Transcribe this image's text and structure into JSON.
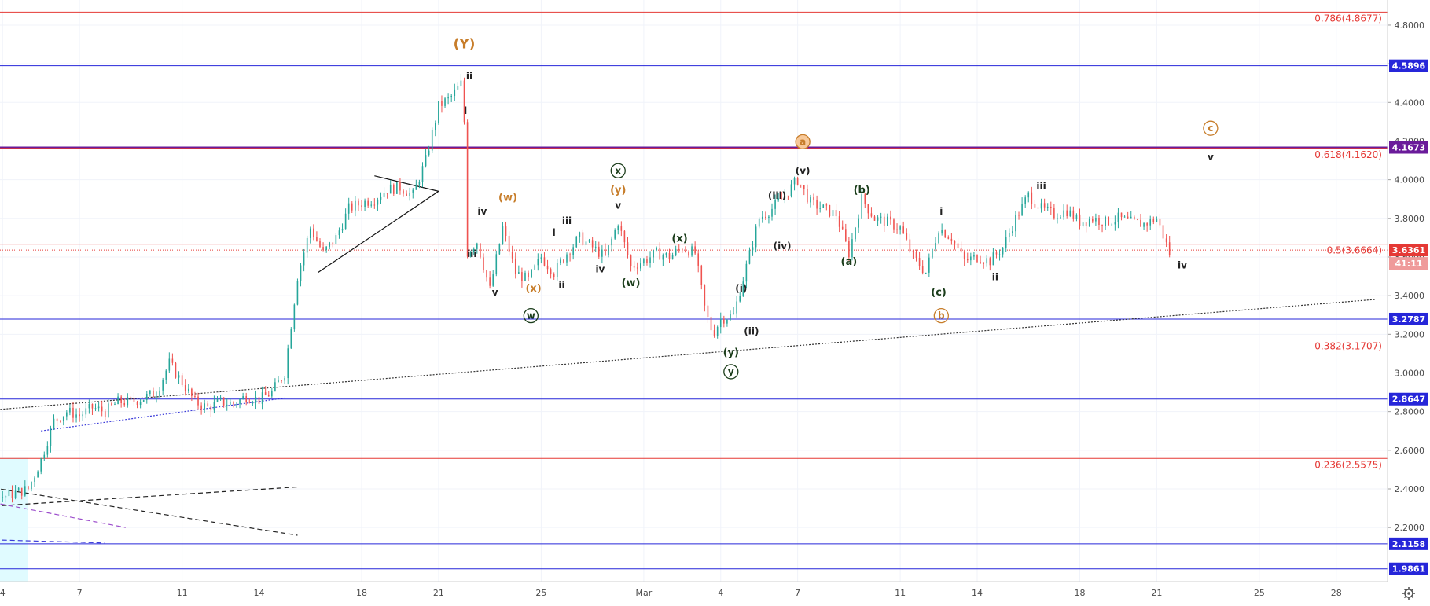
{
  "chart_data": {
    "type": "candlestick",
    "price_range": [
      1.92,
      4.93
    ],
    "price_axis_ticks": [
      "4.8000",
      "4.6000",
      "4.4000",
      "4.2000",
      "4.0000",
      "3.8000",
      "3.6000",
      "3.4000",
      "3.2000",
      "3.0000",
      "2.8000",
      "2.6000",
      "2.4000",
      "2.2000"
    ],
    "time_axis_ticks": [
      {
        "day": 4,
        "label": "4"
      },
      {
        "day": 7,
        "label": "7"
      },
      {
        "day": 11,
        "label": "11"
      },
      {
        "day": 14,
        "label": "14"
      },
      {
        "day": 18,
        "label": "18"
      },
      {
        "day": 21,
        "label": "21"
      },
      {
        "day": 25,
        "label": "25"
      },
      {
        "day": 29,
        "label": "Mar"
      },
      {
        "day": 32,
        "label": "4"
      },
      {
        "day": 35,
        "label": "7"
      },
      {
        "day": 39,
        "label": "11"
      },
      {
        "day": 42,
        "label": "14"
      },
      {
        "day": 46,
        "label": "18"
      },
      {
        "day": 49,
        "label": "21"
      },
      {
        "day": 53,
        "label": "25"
      },
      {
        "day": 56,
        "label": "28"
      }
    ],
    "horizontal_levels": [
      {
        "value": 4.8677,
        "label": "0.786(4.8677)",
        "kind": "fib",
        "color": "#e53935"
      },
      {
        "value": 4.5896,
        "label": "4.5896",
        "kind": "support",
        "color": "#2626d9"
      },
      {
        "value": 4.1673,
        "label": "4.1673",
        "kind": "key",
        "color": "#6a1b9a"
      },
      {
        "value": 4.162,
        "label": "0.618(4.1620)",
        "kind": "fib",
        "color": "#e53935"
      },
      {
        "value": 3.6664,
        "label": "0.5(3.6664)",
        "kind": "fib",
        "color": "#e53935"
      },
      {
        "value": 3.2787,
        "label": "3.2787",
        "kind": "support",
        "color": "#2626d9"
      },
      {
        "value": 3.1707,
        "label": "0.382(3.1707)",
        "kind": "fib",
        "color": "#e53935"
      },
      {
        "value": 2.8647,
        "label": "2.8647",
        "kind": "support",
        "color": "#2626d9"
      },
      {
        "value": 2.5575,
        "label": "0.236(2.5575)",
        "kind": "fib",
        "color": "#e53935"
      },
      {
        "value": 2.1158,
        "label": "2.1158",
        "kind": "support",
        "color": "#2626d9"
      },
      {
        "value": 1.9861,
        "label": "1.9861",
        "kind": "support",
        "color": "#2626d9"
      }
    ],
    "current_price": {
      "value": 3.6361,
      "label": "3.6361",
      "countdown": "41:11",
      "color": "#e53935"
    },
    "price_path": [
      [
        0,
        2.38
      ],
      [
        1,
        2.44
      ],
      [
        2,
        2.42
      ],
      [
        3,
        2.32
      ],
      [
        4,
        2.36
      ],
      [
        5,
        2.4
      ],
      [
        5.5,
        2.55
      ],
      [
        6,
        2.75
      ],
      [
        6.5,
        2.8
      ],
      [
        7,
        2.78
      ],
      [
        7.5,
        2.82
      ],
      [
        8,
        2.8
      ],
      [
        8.5,
        2.85
      ],
      [
        9,
        2.85
      ],
      [
        9.5,
        2.87
      ],
      [
        10,
        2.9
      ],
      [
        10.5,
        3.05
      ],
      [
        11,
        2.95
      ],
      [
        11.5,
        2.85
      ],
      [
        12,
        2.82
      ],
      [
        12.5,
        2.85
      ],
      [
        13,
        2.84
      ],
      [
        13.5,
        2.88
      ],
      [
        14,
        2.86
      ],
      [
        14.5,
        2.9
      ],
      [
        15,
        3.0
      ],
      [
        15.5,
        3.5
      ],
      [
        16,
        3.75
      ],
      [
        16.5,
        3.62
      ],
      [
        17,
        3.7
      ],
      [
        17.5,
        3.85
      ],
      [
        18,
        3.88
      ],
      [
        18.5,
        3.9
      ],
      [
        19,
        3.95
      ],
      [
        19.5,
        3.96
      ],
      [
        20,
        3.92
      ],
      [
        20.5,
        4.1
      ],
      [
        21,
        4.38
      ],
      [
        21.5,
        4.43
      ],
      [
        21.9,
        4.5
      ],
      [
        22,
        4.3
      ],
      [
        22.1,
        3.62
      ],
      [
        22.5,
        3.68
      ],
      [
        23,
        3.43
      ],
      [
        23.5,
        3.75
      ],
      [
        24,
        3.52
      ],
      [
        24.5,
        3.48
      ],
      [
        25,
        3.6
      ],
      [
        25.5,
        3.52
      ],
      [
        26,
        3.62
      ],
      [
        26.5,
        3.7
      ],
      [
        27,
        3.65
      ],
      [
        27.5,
        3.6
      ],
      [
        28,
        3.78
      ],
      [
        28.5,
        3.55
      ],
      [
        29,
        3.58
      ],
      [
        29.5,
        3.62
      ],
      [
        30,
        3.6
      ],
      [
        30.5,
        3.65
      ],
      [
        31,
        3.62
      ],
      [
        31.4,
        3.32
      ],
      [
        31.7,
        3.2
      ],
      [
        32,
        3.28
      ],
      [
        32.5,
        3.3
      ],
      [
        33,
        3.55
      ],
      [
        33.5,
        3.8
      ],
      [
        34,
        3.85
      ],
      [
        34.5,
        3.92
      ],
      [
        35,
        4.0
      ],
      [
        35.5,
        3.88
      ],
      [
        36,
        3.85
      ],
      [
        36.5,
        3.82
      ],
      [
        37,
        3.62
      ],
      [
        37.5,
        3.9
      ],
      [
        38,
        3.8
      ],
      [
        38.5,
        3.78
      ],
      [
        39,
        3.75
      ],
      [
        39.5,
        3.6
      ],
      [
        40,
        3.52
      ],
      [
        40.5,
        3.75
      ],
      [
        41,
        3.7
      ],
      [
        41.5,
        3.58
      ],
      [
        42,
        3.6
      ],
      [
        42.5,
        3.58
      ],
      [
        43,
        3.65
      ],
      [
        43.5,
        3.8
      ],
      [
        44,
        3.92
      ],
      [
        44.5,
        3.85
      ],
      [
        45,
        3.82
      ],
      [
        45.5,
        3.84
      ],
      [
        46,
        3.78
      ],
      [
        46.5,
        3.8
      ],
      [
        47,
        3.78
      ],
      [
        47.5,
        3.8
      ],
      [
        48,
        3.78
      ],
      [
        48.5,
        3.77
      ],
      [
        49,
        3.8
      ],
      [
        49.5,
        3.62
      ]
    ],
    "wave_labels": [
      {
        "text": "(Y)",
        "day": 22.0,
        "price": 4.68,
        "color": "#c77d2a",
        "style": "plain",
        "size": 17
      },
      {
        "text": "ii",
        "day": 22.2,
        "price": 4.52,
        "color": "#222222",
        "style": "plain",
        "size": 12
      },
      {
        "text": "i",
        "day": 22.05,
        "price": 4.34,
        "color": "#222222",
        "style": "plain",
        "size": 12
      },
      {
        "text": "iii",
        "day": 22.3,
        "price": 3.6,
        "color": "#222222",
        "style": "plain",
        "size": 12
      },
      {
        "text": "iv",
        "day": 22.7,
        "price": 3.82,
        "color": "#222222",
        "style": "plain",
        "size": 12
      },
      {
        "text": "v",
        "day": 23.2,
        "price": 3.4,
        "color": "#222222",
        "style": "plain",
        "size": 12
      },
      {
        "text": "(w)",
        "day": 23.7,
        "price": 3.89,
        "color": "#c77d2a",
        "style": "plain",
        "size": 13
      },
      {
        "text": "(x)",
        "day": 24.7,
        "price": 3.42,
        "color": "#c77d2a",
        "style": "plain",
        "size": 13
      },
      {
        "text": "w",
        "day": 24.6,
        "price": 3.28,
        "color": "#1b3d1b",
        "style": "circle",
        "size": 12
      },
      {
        "text": "i",
        "day": 25.5,
        "price": 3.71,
        "color": "#222222",
        "style": "plain",
        "size": 12
      },
      {
        "text": "iii",
        "day": 26.0,
        "price": 3.77,
        "color": "#222222",
        "style": "plain",
        "size": 12
      },
      {
        "text": "ii",
        "day": 25.8,
        "price": 3.44,
        "color": "#222222",
        "style": "plain",
        "size": 12
      },
      {
        "text": "iv",
        "day": 27.3,
        "price": 3.52,
        "color": "#222222",
        "style": "plain",
        "size": 12
      },
      {
        "text": "x",
        "day": 28.0,
        "price": 4.03,
        "color": "#1b3d1b",
        "style": "circle",
        "size": 12
      },
      {
        "text": "(y)",
        "day": 28.0,
        "price": 3.93,
        "color": "#c77d2a",
        "style": "plain",
        "size": 13
      },
      {
        "text": "v",
        "day": 28.0,
        "price": 3.85,
        "color": "#222222",
        "style": "plain",
        "size": 12
      },
      {
        "text": "(w)",
        "day": 28.5,
        "price": 3.45,
        "color": "#1b3d1b",
        "style": "plain",
        "size": 13
      },
      {
        "text": "(x)",
        "day": 30.4,
        "price": 3.68,
        "color": "#1b3d1b",
        "style": "plain",
        "size": 13
      },
      {
        "text": "(i)",
        "day": 32.8,
        "price": 3.42,
        "color": "#222222",
        "style": "plain",
        "size": 12
      },
      {
        "text": "(ii)",
        "day": 33.2,
        "price": 3.2,
        "color": "#222222",
        "style": "plain",
        "size": 12
      },
      {
        "text": "(y)",
        "day": 32.4,
        "price": 3.09,
        "color": "#1b3d1b",
        "style": "plain",
        "size": 13
      },
      {
        "text": "y",
        "day": 32.4,
        "price": 2.99,
        "color": "#1b3d1b",
        "style": "circle",
        "size": 12
      },
      {
        "text": "(iii)",
        "day": 34.2,
        "price": 3.9,
        "color": "#222222",
        "style": "plain",
        "size": 12
      },
      {
        "text": "(iv)",
        "day": 34.4,
        "price": 3.64,
        "color": "#222222",
        "style": "plain",
        "size": 12
      },
      {
        "text": "(v)",
        "day": 35.2,
        "price": 4.03,
        "color": "#222222",
        "style": "plain",
        "size": 12
      },
      {
        "text": "a",
        "day": 35.2,
        "price": 4.18,
        "color": "#c77d2a",
        "style": "circle-filled",
        "size": 12
      },
      {
        "text": "(a)",
        "day": 37.0,
        "price": 3.56,
        "color": "#1b3d1b",
        "style": "plain",
        "size": 13
      },
      {
        "text": "(b)",
        "day": 37.5,
        "price": 3.93,
        "color": "#1b3d1b",
        "style": "plain",
        "size": 13
      },
      {
        "text": "i",
        "day": 40.6,
        "price": 3.82,
        "color": "#222222",
        "style": "plain",
        "size": 12
      },
      {
        "text": "(c)",
        "day": 40.5,
        "price": 3.4,
        "color": "#1b3d1b",
        "style": "plain",
        "size": 13
      },
      {
        "text": "b",
        "day": 40.6,
        "price": 3.28,
        "color": "#c77d2a",
        "style": "circle",
        "size": 12
      },
      {
        "text": "ii",
        "day": 42.7,
        "price": 3.48,
        "color": "#222222",
        "style": "plain",
        "size": 12
      },
      {
        "text": "iii",
        "day": 44.5,
        "price": 3.95,
        "color": "#222222",
        "style": "plain",
        "size": 12
      },
      {
        "text": "iv",
        "day": 50.0,
        "price": 3.54,
        "color": "#222222",
        "style": "plain",
        "size": 12
      },
      {
        "text": "c",
        "day": 51.1,
        "price": 4.25,
        "color": "#c77d2a",
        "style": "circle",
        "size": 12
      },
      {
        "text": "v",
        "day": 51.1,
        "price": 4.1,
        "color": "#222222",
        "style": "plain",
        "size": 12
      }
    ],
    "drawn_lines": [
      {
        "name": "long-trendline",
        "from": [
          0,
          2.77
        ],
        "to": [
          57.5,
          3.38
        ],
        "color": "#333333",
        "dash": "2,2"
      },
      {
        "name": "channel-lower",
        "from": [
          5.5,
          2.7
        ],
        "to": [
          15.0,
          2.87
        ],
        "color": "#3b3bd9",
        "dash": "2,2"
      },
      {
        "name": "triangle-upper",
        "from": [
          18.5,
          4.02
        ],
        "to": [
          21.0,
          3.94
        ],
        "color": "#111111",
        "dash": ""
      },
      {
        "name": "triangle-lower",
        "from": [
          16.3,
          3.52
        ],
        "to": [
          21.0,
          3.94
        ],
        "color": "#111111",
        "dash": ""
      },
      {
        "name": "wedge-dash-1",
        "from": [
          0,
          2.28
        ],
        "to": [
          15.5,
          2.41
        ],
        "color": "#222222",
        "dash": "6,4"
      },
      {
        "name": "wedge-dash-2",
        "from": [
          0,
          2.48
        ],
        "to": [
          15.5,
          2.16
        ],
        "color": "#222222",
        "dash": "6,4"
      },
      {
        "name": "wedge-purple-1",
        "from": [
          0,
          2.42
        ],
        "to": [
          8.8,
          2.2
        ],
        "color": "#9c4dcc",
        "dash": "6,4"
      },
      {
        "name": "wedge-purple-2",
        "from": [
          0,
          2.15
        ],
        "to": [
          8.0,
          2.12
        ],
        "color": "#3b3bd9",
        "dash": "6,4"
      }
    ],
    "highlight_box": {
      "from_day": 0,
      "to_day": 5.0,
      "from_price": 1.92,
      "to_price": 2.56,
      "color": "#e0fbff"
    },
    "icons": {
      "settings": "gear-icon"
    }
  }
}
